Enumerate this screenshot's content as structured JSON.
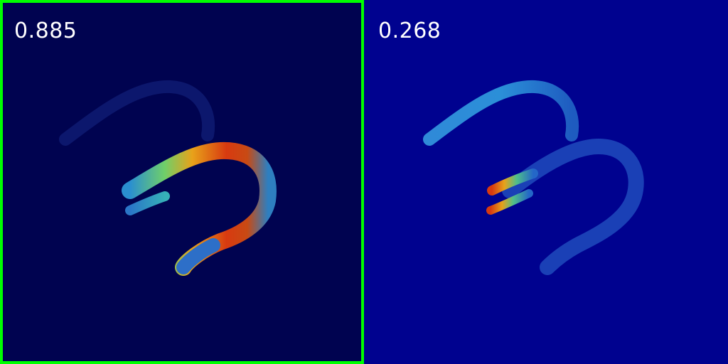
{
  "panels": [
    {
      "score": "0.885",
      "selected": true
    },
    {
      "score": "0.268",
      "selected": false
    }
  ],
  "colors": {
    "frame_selected": "#00ff00",
    "left_background": "#000350",
    "right_background": "#00028f"
  }
}
